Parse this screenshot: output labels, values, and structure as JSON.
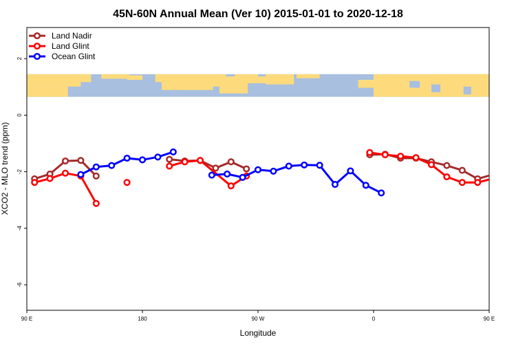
{
  "chart_data": {
    "type": "line",
    "title": "45N-60N Annual Mean (Ver 10)   2015-01-01 to 2020-12-18",
    "xlabel": "Longitude",
    "ylabel": "XCO2 - MLO trend (ppm)",
    "xlim": [
      90,
      450
    ],
    "ylim": [
      -6.9,
      3.1
    ],
    "x_ticks": [
      {
        "value": 90,
        "label": "90 E"
      },
      {
        "value": 180,
        "label": "180"
      },
      {
        "value": 270,
        "label": "90 W"
      },
      {
        "value": 360,
        "label": "0"
      },
      {
        "value": 450,
        "label": "90 E"
      },
      {
        "value": 540,
        "label": "180"
      }
    ],
    "y_ticks": [
      {
        "value": 2,
        "label": "2"
      },
      {
        "value": 0,
        "label": "0"
      },
      {
        "value": -2,
        "label": "-2"
      },
      {
        "value": -4,
        "label": "-4"
      },
      {
        "value": -6,
        "label": "-6"
      }
    ],
    "map_band": {
      "y_top": 1.45,
      "y_bottom": 0.65,
      "ocean_color": "#a8bfdf",
      "land_color": "#fddb7c"
    },
    "legend_position": "top-left",
    "series": [
      {
        "name": "Land Nadir",
        "color": "#a52a2a",
        "segments": [
          [
            [
              96,
              -2.25
            ],
            [
              108,
              -2.08
            ],
            [
              120,
              -1.62
            ],
            [
              132,
              -1.6
            ],
            [
              144,
              -2.15
            ]
          ],
          [
            [
              201,
              -1.56
            ],
            [
              213,
              -1.62
            ],
            [
              225,
              -1.6
            ],
            [
              237,
              -1.87
            ],
            [
              249,
              -1.65
            ],
            [
              261,
              -1.9
            ]
          ],
          [
            [
              357,
              -1.4
            ],
            [
              369,
              -1.38
            ],
            [
              381,
              -1.52
            ],
            [
              393,
              -1.52
            ],
            [
              405,
              -1.65
            ],
            [
              417,
              -1.78
            ],
            [
              429,
              -1.95
            ],
            [
              441,
              -2.25
            ],
            [
              453,
              -2.1
            ],
            [
              465,
              -1.62
            ],
            [
              477,
              -1.6
            ],
            [
              489,
              -2.15
            ]
          ]
        ]
      },
      {
        "name": "Land Glint",
        "color": "#ff0000",
        "segments": [
          [
            [
              96,
              -2.38
            ],
            [
              108,
              -2.24
            ],
            [
              120,
              -2.05
            ],
            [
              132,
              -2.15
            ],
            [
              144,
              -3.12
            ]
          ],
          [
            [
              168,
              -2.38
            ]
          ],
          [
            [
              201,
              -1.8
            ],
            [
              213,
              -1.65
            ],
            [
              225,
              -1.6
            ],
            [
              249,
              -2.5
            ],
            [
              261,
              -2.15
            ]
          ],
          [
            [
              357,
              -1.32
            ],
            [
              369,
              -1.4
            ],
            [
              381,
              -1.45
            ],
            [
              393,
              -1.5
            ],
            [
              405,
              -1.75
            ],
            [
              417,
              -2.18
            ],
            [
              429,
              -2.38
            ],
            [
              441,
              -2.38
            ],
            [
              453,
              -2.24
            ],
            [
              465,
              -2.05
            ],
            [
              477,
              -2.15
            ],
            [
              489,
              -3.12
            ]
          ]
        ]
      },
      {
        "name": "Ocean Glint",
        "color": "#0000ff",
        "segments": [
          [
            [
              132,
              -2.1
            ],
            [
              144,
              -1.83
            ],
            [
              156,
              -1.78
            ],
            [
              168,
              -1.52
            ],
            [
              180,
              -1.58
            ],
            [
              192,
              -1.48
            ],
            [
              204,
              -1.3
            ]
          ],
          [
            [
              234,
              -2.12
            ],
            [
              246,
              -2.08
            ],
            [
              258,
              -2.2
            ],
            [
              270,
              -1.93
            ],
            [
              282,
              -1.98
            ],
            [
              294,
              -1.8
            ],
            [
              306,
              -1.76
            ],
            [
              318,
              -1.77
            ],
            [
              330,
              -2.45
            ],
            [
              342,
              -1.97
            ],
            [
              354,
              -2.48
            ],
            [
              366,
              -2.75
            ]
          ],
          [
            [
              468,
              -2.1
            ],
            [
              480,
              -1.83
            ],
            [
              492,
              -1.78
            ]
          ]
        ]
      }
    ]
  }
}
